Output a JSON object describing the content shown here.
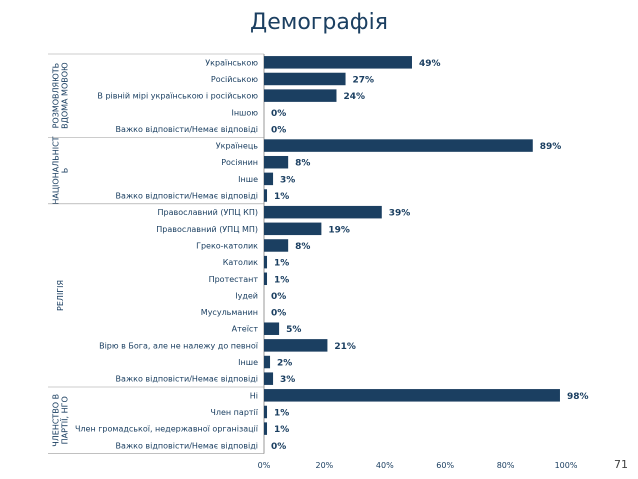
{
  "page": {
    "title": "Демографія",
    "page_number": "71"
  },
  "chart_data": {
    "type": "bar",
    "orientation": "horizontal",
    "title": "Демографія",
    "xlim": [
      0,
      100
    ],
    "x_ticks": [
      "0%",
      "20%",
      "40%",
      "60%",
      "80%",
      "100%"
    ],
    "bar_color": "#1b3f61",
    "groups": [
      {
        "label": "РОЗМОВЛЯЮТЬ ВДОМА МОВОЮ",
        "label_lines": [
          "РОЗМОВЛЯЮТЬ",
          "ВДОМА МОВОЮ"
        ],
        "items": [
          {
            "label": "Українською",
            "value": 49,
            "text": "49%"
          },
          {
            "label": "Російською",
            "value": 27,
            "text": "27%"
          },
          {
            "label": "В рівній мірі українською і російською",
            "value": 24,
            "text": "24%"
          },
          {
            "label": "Іншою",
            "value": 0,
            "text": "0%"
          },
          {
            "label": "Важко відповісти/Немає відповіді",
            "value": 0,
            "text": "0%"
          }
        ]
      },
      {
        "label": "НАЦІОНАЛЬНІСТЬ",
        "label_lines": [
          "НАЦІОНАЛЬНІСТ",
          "Ь"
        ],
        "items": [
          {
            "label": "Українець",
            "value": 89,
            "text": "89%"
          },
          {
            "label": "Росіянин",
            "value": 8,
            "text": "8%"
          },
          {
            "label": "Інше",
            "value": 3,
            "text": "3%"
          },
          {
            "label": "Важко відповісти/Немає відповіді",
            "value": 1,
            "text": "1%"
          }
        ]
      },
      {
        "label": "РЕЛІГІЯ",
        "label_lines": [
          "РЕЛІГІЯ"
        ],
        "items": [
          {
            "label": "Православний (УПЦ КП)",
            "value": 39,
            "text": "39%"
          },
          {
            "label": "Православний (УПЦ МП)",
            "value": 19,
            "text": "19%"
          },
          {
            "label": "Греко-католик",
            "value": 8,
            "text": "8%"
          },
          {
            "label": "Католик",
            "value": 1,
            "text": "1%"
          },
          {
            "label": "Протестант",
            "value": 1,
            "text": "1%"
          },
          {
            "label": "Іудей",
            "value": 0,
            "text": "0%"
          },
          {
            "label": "Мусульманин",
            "value": 0,
            "text": "0%"
          },
          {
            "label": "Атеїст",
            "value": 5,
            "text": "5%"
          },
          {
            "label": "Вірю в Бога, але не належу до певної",
            "value": 21,
            "text": "21%"
          },
          {
            "label": "Інше",
            "value": 2,
            "text": "2%"
          },
          {
            "label": "Важко відповісти/Немає відповіді",
            "value": 3,
            "text": "3%"
          }
        ]
      },
      {
        "label": "ЧЛЕНСТВО В ПАРТІЇ, НГО",
        "label_lines": [
          "ЧЛЕНСТВО В",
          "ПАРТІЇ, НГО"
        ],
        "items": [
          {
            "label": "Ні",
            "value": 98,
            "text": "98%"
          },
          {
            "label": "Член партії",
            "value": 1,
            "text": "1%"
          },
          {
            "label": "Член громадської, недержавної організації",
            "value": 1,
            "text": "1%"
          },
          {
            "label": "Важко відповісти/Немає відповіді",
            "value": 0,
            "text": "0%"
          }
        ]
      }
    ]
  }
}
